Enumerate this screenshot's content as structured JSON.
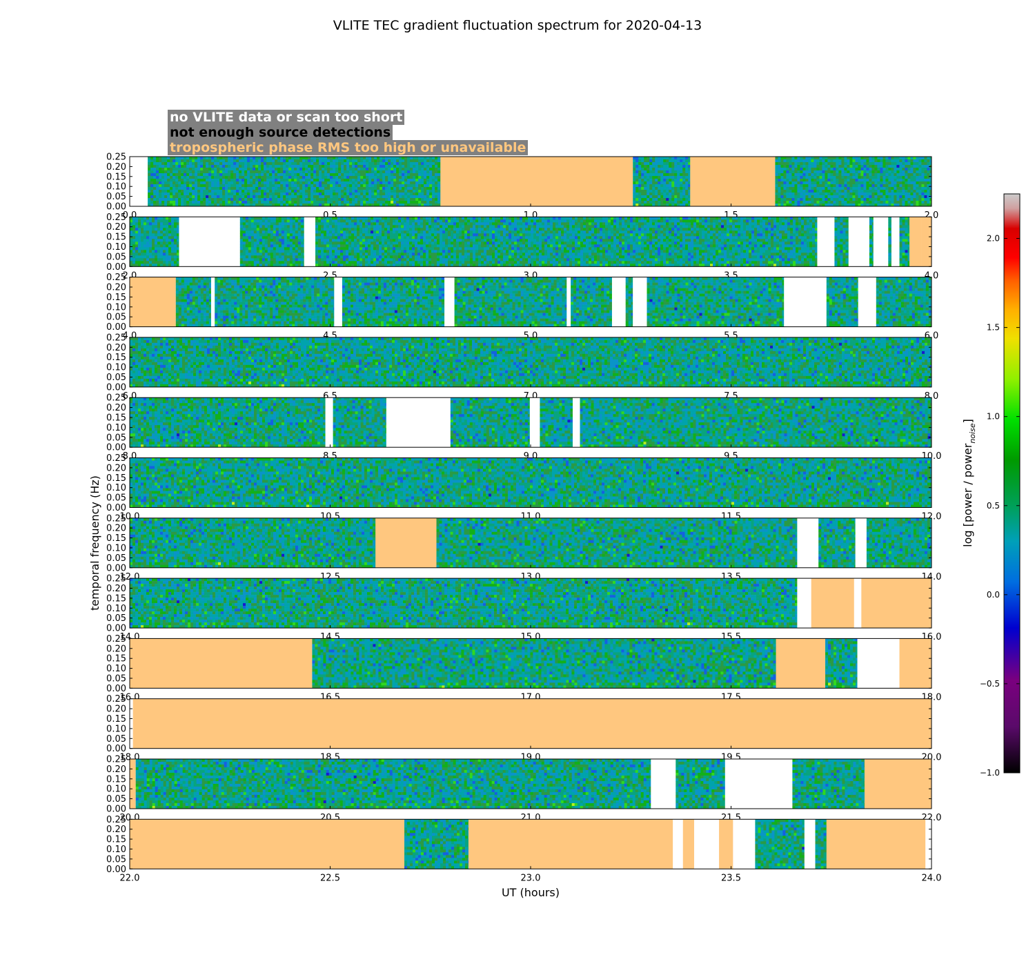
{
  "chart_data": {
    "type": "heatmap",
    "title": "VLITE TEC gradient fluctuation spectrum for 2020-04-13",
    "xlabel": "UT (hours)",
    "ylabel": "temporal frequency (Hz)",
    "colorbar_label": "log [power / power",
    "colorbar_label_sub": "noise",
    "colorbar_label_end": "]",
    "colorbar_range": [
      -1.0,
      2.25
    ],
    "colorbar_ticks": [
      "2.0",
      "1.5",
      "1.0",
      "0.5",
      "0.0",
      "−0.5",
      "−1.0"
    ],
    "colorbar_tick_values": [
      2.0,
      1.5,
      1.0,
      0.5,
      0.0,
      -0.5,
      -1.0
    ],
    "ylim": [
      0,
      0.25
    ],
    "yticks": [
      "0.25",
      "0.20",
      "0.15",
      "0.10",
      "0.05",
      "0.00"
    ],
    "ytick_values": [
      0.25,
      0.2,
      0.15,
      0.1,
      0.05,
      0.0
    ],
    "legend": [
      {
        "label": "no VLITE data or scan too short",
        "color": "#ffffff"
      },
      {
        "label": "not enough source detections",
        "color": "#000000"
      },
      {
        "label": "tropospheric phase RMS too high or unavailable",
        "color": "#ffc77f"
      }
    ],
    "category_colors": {
      "nodata": "#ffffff",
      "tropo": "#ffc77f"
    },
    "panels": [
      {
        "xrange": [
          0.0,
          2.0
        ],
        "xticks": [
          "0.0",
          "0.5",
          "1.0",
          "1.5",
          "2.0"
        ],
        "segments": [
          [
            0.0,
            0.045,
            "nodata"
          ],
          [
            0.045,
            0.775,
            "data"
          ],
          [
            0.775,
            1.255,
            "tropo"
          ],
          [
            1.255,
            1.398,
            "data"
          ],
          [
            1.398,
            1.61,
            "tropo"
          ],
          [
            1.61,
            2.0,
            "data"
          ]
        ]
      },
      {
        "xrange": [
          2.0,
          4.0
        ],
        "xticks": [
          "2.0",
          "2.5",
          "3.0",
          "3.5",
          "4.0"
        ],
        "segments": [
          [
            2.0,
            2.123,
            "data"
          ],
          [
            2.123,
            2.275,
            "nodata"
          ],
          [
            2.275,
            2.435,
            "data"
          ],
          [
            2.435,
            2.463,
            "nodata"
          ],
          [
            2.463,
            3.715,
            "data"
          ],
          [
            3.715,
            3.758,
            "nodata"
          ],
          [
            3.758,
            3.793,
            "data"
          ],
          [
            3.793,
            3.845,
            "nodata"
          ],
          [
            3.845,
            3.855,
            "data"
          ],
          [
            3.855,
            3.892,
            "nodata"
          ],
          [
            3.892,
            3.9,
            "data"
          ],
          [
            3.9,
            3.92,
            "nodata"
          ],
          [
            3.92,
            3.945,
            "data"
          ],
          [
            3.945,
            3.975,
            "tropo"
          ],
          [
            3.975,
            4.0,
            "tropo"
          ]
        ]
      },
      {
        "xrange": [
          4.0,
          6.0
        ],
        "xticks": [
          "4.0",
          "4.5",
          "5.0",
          "5.5",
          "6.0"
        ],
        "segments": [
          [
            4.0,
            4.115,
            "tropo"
          ],
          [
            4.115,
            4.203,
            "data"
          ],
          [
            4.203,
            4.212,
            "nodata"
          ],
          [
            4.212,
            4.51,
            "data"
          ],
          [
            4.51,
            4.53,
            "nodata"
          ],
          [
            4.53,
            4.785,
            "data"
          ],
          [
            4.785,
            4.81,
            "nodata"
          ],
          [
            4.81,
            5.09,
            "data"
          ],
          [
            5.09,
            5.1,
            "nodata"
          ],
          [
            5.1,
            5.203,
            "data"
          ],
          [
            5.203,
            5.237,
            "nodata"
          ],
          [
            5.237,
            5.255,
            "data"
          ],
          [
            5.255,
            5.29,
            "nodata"
          ],
          [
            5.29,
            5.632,
            "data"
          ],
          [
            5.632,
            5.738,
            "nodata"
          ],
          [
            5.738,
            5.817,
            "data"
          ],
          [
            5.817,
            5.862,
            "nodata"
          ],
          [
            5.862,
            6.0,
            "data"
          ]
        ]
      },
      {
        "xrange": [
          6.0,
          8.0
        ],
        "xticks": [
          "6.0",
          "6.5",
          "7.0",
          "7.5",
          "8.0"
        ],
        "segments": [
          [
            6.0,
            8.0,
            "data"
          ]
        ]
      },
      {
        "xrange": [
          8.0,
          10.0
        ],
        "xticks": [
          "8.0",
          "8.5",
          "9.0",
          "9.5",
          "10.0"
        ],
        "segments": [
          [
            8.0,
            8.488,
            "data"
          ],
          [
            8.488,
            8.507,
            "nodata"
          ],
          [
            8.507,
            8.64,
            "data"
          ],
          [
            8.64,
            8.8,
            "nodata"
          ],
          [
            8.8,
            8.998,
            "data"
          ],
          [
            8.998,
            9.023,
            "nodata"
          ],
          [
            9.023,
            9.105,
            "data"
          ],
          [
            9.105,
            9.123,
            "nodata"
          ],
          [
            9.123,
            10.0,
            "data"
          ]
        ]
      },
      {
        "xrange": [
          10.0,
          12.0
        ],
        "xticks": [
          "10.0",
          "10.5",
          "11.0",
          "11.5",
          "12.0"
        ],
        "segments": [
          [
            10.0,
            12.0,
            "data"
          ]
        ]
      },
      {
        "xrange": [
          12.0,
          14.0
        ],
        "xticks": [
          "12.0",
          "12.5",
          "13.0",
          "13.5",
          "14.0"
        ],
        "segments": [
          [
            12.0,
            12.613,
            "data"
          ],
          [
            12.613,
            12.765,
            "tropo"
          ],
          [
            12.765,
            13.665,
            "data"
          ],
          [
            13.665,
            13.718,
            "nodata"
          ],
          [
            13.718,
            13.81,
            "data"
          ],
          [
            13.81,
            13.838,
            "nodata"
          ],
          [
            13.838,
            14.0,
            "data"
          ]
        ]
      },
      {
        "xrange": [
          14.0,
          16.0
        ],
        "xticks": [
          "14.0",
          "14.5",
          "15.0",
          "15.5",
          "16.0"
        ],
        "segments": [
          [
            14.0,
            15.665,
            "data"
          ],
          [
            15.665,
            15.7,
            "nodata"
          ],
          [
            15.7,
            15.807,
            "tropo"
          ],
          [
            15.807,
            15.825,
            "nodata"
          ],
          [
            15.825,
            16.0,
            "tropo"
          ]
        ]
      },
      {
        "xrange": [
          16.0,
          18.0
        ],
        "xticks": [
          "16.0",
          "16.5",
          "17.0",
          "17.5",
          "18.0"
        ],
        "segments": [
          [
            16.0,
            16.455,
            "tropo"
          ],
          [
            16.455,
            17.612,
            "data"
          ],
          [
            17.612,
            17.735,
            "tropo"
          ],
          [
            17.735,
            17.815,
            "data"
          ],
          [
            17.815,
            17.92,
            "nodata"
          ],
          [
            17.92,
            18.0,
            "tropo"
          ]
        ]
      },
      {
        "xrange": [
          18.0,
          20.0
        ],
        "xticks": [
          "18.0",
          "18.5",
          "19.0",
          "19.5",
          "20.0"
        ],
        "segments": [
          [
            18.0,
            18.008,
            "nodata"
          ],
          [
            18.008,
            20.0,
            "tropo"
          ]
        ]
      },
      {
        "xrange": [
          20.0,
          22.0
        ],
        "xticks": [
          "20.0",
          "20.5",
          "21.0",
          "21.5",
          "22.0"
        ],
        "segments": [
          [
            20.0,
            20.015,
            "tropo"
          ],
          [
            20.015,
            21.3,
            "data"
          ],
          [
            21.3,
            21.362,
            "nodata"
          ],
          [
            21.362,
            21.485,
            "data"
          ],
          [
            21.485,
            21.653,
            "nodata"
          ],
          [
            21.653,
            21.833,
            "data"
          ],
          [
            21.833,
            22.0,
            "tropo"
          ]
        ]
      },
      {
        "xrange": [
          22.0,
          24.0
        ],
        "xticks": [
          "22.0",
          "22.5",
          "23.0",
          "23.5",
          "24.0"
        ],
        "segments": [
          [
            22.0,
            22.685,
            "tropo"
          ],
          [
            22.685,
            22.845,
            "data"
          ],
          [
            22.845,
            23.355,
            "tropo"
          ],
          [
            23.355,
            23.38,
            "nodata"
          ],
          [
            23.38,
            23.408,
            "tropo"
          ],
          [
            23.408,
            23.47,
            "nodata"
          ],
          [
            23.47,
            23.505,
            "tropo"
          ],
          [
            23.505,
            23.56,
            "nodata"
          ],
          [
            23.56,
            23.683,
            "data"
          ],
          [
            23.683,
            23.71,
            "nodata"
          ],
          [
            23.71,
            23.738,
            "data"
          ],
          [
            23.738,
            23.985,
            "tropo"
          ],
          [
            23.985,
            24.0,
            "nodata"
          ]
        ]
      }
    ]
  }
}
